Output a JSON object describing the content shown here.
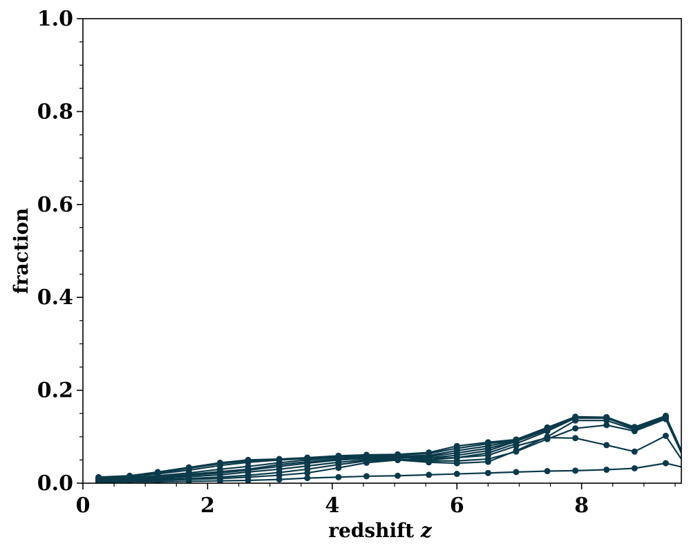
{
  "chart_data": {
    "type": "line",
    "title": "",
    "xlabel": "redshift",
    "xlabel_var": "z",
    "ylabel": "fraction",
    "xlim": [
      0,
      9.6
    ],
    "ylim": [
      0,
      1.0
    ],
    "x_ticks": [
      0,
      2,
      4,
      6,
      8
    ],
    "x_tick_labels": [
      "0",
      "2",
      "4",
      "6",
      "8"
    ],
    "y_ticks": [
      0.0,
      0.2,
      0.4,
      0.6,
      0.8,
      1.0
    ],
    "y_tick_labels": [
      "0.0",
      "0.2",
      "0.4",
      "0.6",
      "0.8",
      "1.0"
    ],
    "grid": false,
    "line_color": "#0b3a4a",
    "x": [
      0.25,
      0.75,
      1.2,
      1.7,
      2.2,
      2.65,
      3.15,
      3.6,
      4.1,
      4.55,
      5.05,
      5.55,
      6.0,
      6.5,
      6.95,
      7.45,
      7.9,
      8.4,
      8.85,
      9.35,
      9.6
    ],
    "series": [
      {
        "values": [
          0.002,
          0.003,
          0.003,
          0.004,
          0.005,
          0.006,
          0.008,
          0.011,
          0.013,
          0.015,
          0.016,
          0.018,
          0.02,
          0.022,
          0.024,
          0.026,
          0.027,
          0.029,
          0.032,
          0.043,
          0.035
        ]
      },
      {
        "values": [
          0.004,
          0.005,
          0.006,
          0.008,
          0.01,
          0.013,
          0.017,
          0.022,
          0.033,
          0.044,
          0.05,
          0.054,
          0.055,
          0.06,
          0.08,
          0.098,
          0.097,
          0.082,
          0.068,
          0.102,
          0.052
        ]
      },
      {
        "values": [
          0.005,
          0.006,
          0.008,
          0.01,
          0.013,
          0.017,
          0.023,
          0.03,
          0.04,
          0.048,
          0.05,
          0.048,
          0.048,
          0.052,
          0.068,
          0.095,
          0.118,
          0.125,
          0.112,
          0.138,
          0.065
        ]
      },
      {
        "values": [
          0.006,
          0.008,
          0.01,
          0.014,
          0.018,
          0.024,
          0.03,
          0.037,
          0.045,
          0.05,
          0.05,
          0.045,
          0.043,
          0.046,
          0.07,
          0.1,
          0.135,
          0.135,
          0.115,
          0.14,
          0.068
        ]
      },
      {
        "values": [
          0.007,
          0.009,
          0.012,
          0.017,
          0.022,
          0.028,
          0.036,
          0.043,
          0.05,
          0.053,
          0.052,
          0.05,
          0.055,
          0.065,
          0.085,
          0.112,
          0.14,
          0.14,
          0.118,
          0.142,
          0.07
        ]
      },
      {
        "values": [
          0.008,
          0.01,
          0.013,
          0.019,
          0.025,
          0.03,
          0.04,
          0.046,
          0.052,
          0.055,
          0.055,
          0.055,
          0.06,
          0.07,
          0.09,
          0.115,
          0.141,
          0.141,
          0.119,
          0.143,
          0.07
        ]
      },
      {
        "values": [
          0.009,
          0.012,
          0.016,
          0.022,
          0.03,
          0.036,
          0.044,
          0.05,
          0.055,
          0.058,
          0.058,
          0.058,
          0.065,
          0.075,
          0.09,
          0.118,
          0.142,
          0.141,
          0.12,
          0.143,
          0.07
        ]
      },
      {
        "values": [
          0.01,
          0.014,
          0.02,
          0.028,
          0.038,
          0.045,
          0.05,
          0.053,
          0.057,
          0.058,
          0.058,
          0.06,
          0.07,
          0.08,
          0.092,
          0.118,
          0.142,
          0.142,
          0.12,
          0.144,
          0.07
        ]
      },
      {
        "values": [
          0.012,
          0.015,
          0.022,
          0.032,
          0.042,
          0.048,
          0.051,
          0.054,
          0.058,
          0.06,
          0.061,
          0.064,
          0.075,
          0.085,
          0.093,
          0.118,
          0.142,
          0.142,
          0.12,
          0.144,
          0.07
        ]
      },
      {
        "values": [
          0.013,
          0.016,
          0.024,
          0.034,
          0.044,
          0.05,
          0.052,
          0.055,
          0.059,
          0.061,
          0.062,
          0.066,
          0.08,
          0.088,
          0.094,
          0.12,
          0.143,
          0.142,
          0.121,
          0.145,
          0.07
        ]
      }
    ]
  }
}
